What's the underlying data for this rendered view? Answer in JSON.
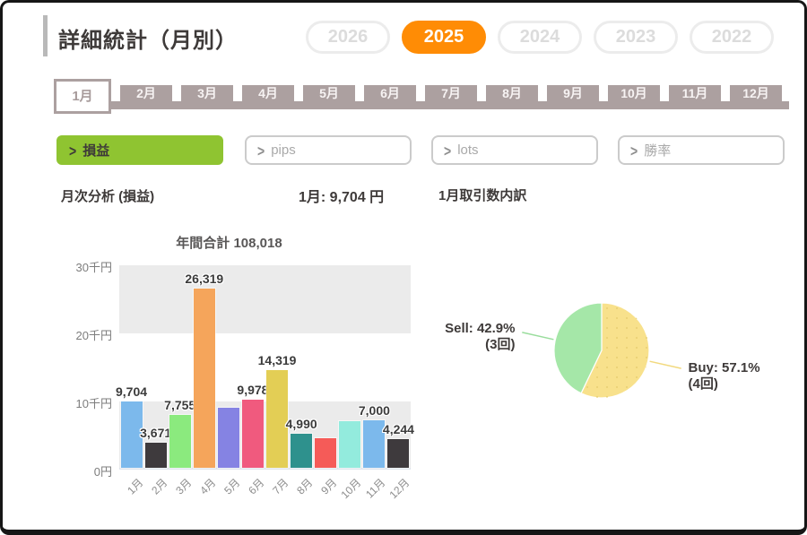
{
  "header": {
    "title": "詳細統計（月別）",
    "years": [
      "2026",
      "2025",
      "2024",
      "2023",
      "2022"
    ],
    "active_year": "2025"
  },
  "months": {
    "labels": [
      "1月",
      "2月",
      "3月",
      "4月",
      "5月",
      "6月",
      "7月",
      "8月",
      "9月",
      "10月",
      "11月",
      "12月"
    ],
    "active": "1月"
  },
  "filters": {
    "chevron": ">",
    "items": [
      {
        "label": "損益",
        "active": true
      },
      {
        "label": "pips",
        "active": false
      },
      {
        "label": "lots",
        "active": false
      },
      {
        "label": "勝率",
        "active": false
      }
    ]
  },
  "summary": {
    "analysis_title": "月次分析 (損益)",
    "month_total": "1月: 9,704 円",
    "breakdown_title": "1月取引数内訳"
  },
  "colors": {
    "accent_orange": "#ff8c05",
    "taupe": "#aca0a0",
    "active_green": "#8fc431",
    "band_gray": "#ebebeb"
  },
  "chart_data": [
    {
      "type": "bar",
      "title": "年間合計 108,018",
      "categories": [
        "1月",
        "2月",
        "3月",
        "4月",
        "5月",
        "6月",
        "7月",
        "8月",
        "9月",
        "10月",
        "11月",
        "12月"
      ],
      "values": [
        9704,
        3671,
        7755,
        26319,
        8800,
        9978,
        14319,
        4990,
        4400,
        6838,
        7000,
        4244
      ],
      "data_labels": [
        "9,704",
        "3,671",
        "7,755",
        "26,319",
        null,
        "9,978",
        "14,319",
        "4,990",
        null,
        null,
        "7,000",
        "4,244"
      ],
      "bar_colors": [
        "#7cb9ec",
        "#3e3a3d",
        "#8bea7e",
        "#f5a55b",
        "#8583e3",
        "#f05a7e",
        "#e3ce55",
        "#2e918d",
        "#f55b58",
        "#93ebdd",
        "#7cb9ec",
        "#3e3a3d"
      ],
      "ylabel": "円",
      "ylim": [
        0,
        30000
      ],
      "yticks": [
        {
          "label": "30千円",
          "value": 30000
        },
        {
          "label": "20千円",
          "value": 20000
        },
        {
          "label": "10千円",
          "value": 10000
        },
        {
          "label": "0円",
          "value": 0
        }
      ],
      "grid": "alternating-bands"
    },
    {
      "type": "pie",
      "start_angle": "top",
      "direction": "clockwise",
      "slices": [
        {
          "name": "Buy",
          "pct": 57.1,
          "label": "Buy: 57.1%",
          "count_label": "(4回)",
          "color": "#f8e18c",
          "line_color": "#f2d97e",
          "dots": true
        },
        {
          "name": "Sell",
          "pct": 42.9,
          "label": "Sell: 42.9%",
          "count_label": "(3回)",
          "color": "#a5e7a8",
          "line_color": "#9add9d",
          "dots": false
        }
      ]
    }
  ]
}
